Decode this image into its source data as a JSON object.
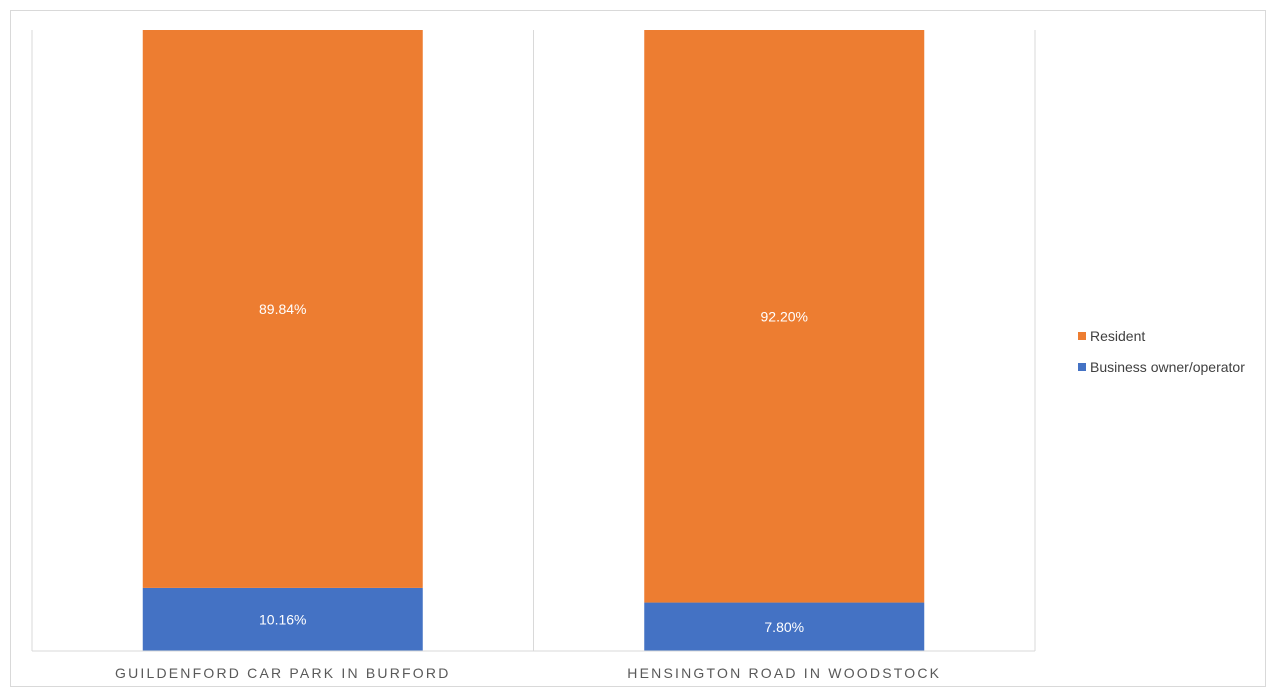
{
  "chart_data": {
    "type": "bar",
    "stacked": true,
    "normalized_percent": true,
    "categories": [
      "GUILDENFORD CAR PARK IN BURFORD",
      "HENSINGTON ROAD IN WOODSTOCK"
    ],
    "series": [
      {
        "name": "Business owner/operator",
        "values": [
          10.16,
          7.8
        ],
        "labels": [
          "10.16%",
          "7.80%"
        ],
        "color": "#4472C4"
      },
      {
        "name": "Resident",
        "values": [
          89.84,
          92.2
        ],
        "labels": [
          "89.84%",
          "92.20%"
        ],
        "color": "#ED7D31"
      }
    ],
    "ylim": [
      0,
      100
    ],
    "grid": "vertical separators between categories",
    "legend_position": "right",
    "legend_order": [
      "Resident",
      "Business owner/operator"
    ],
    "title": "",
    "xlabel": "",
    "ylabel": ""
  }
}
